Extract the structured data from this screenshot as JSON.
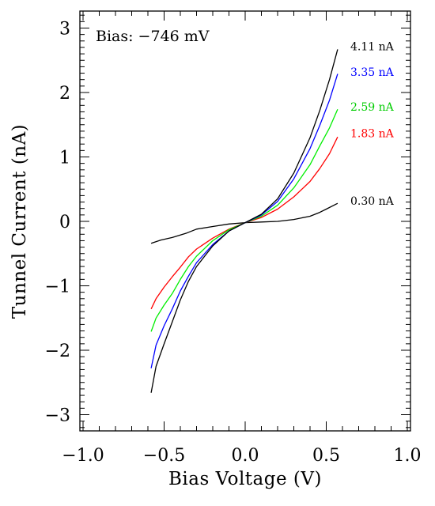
{
  "chart_data": {
    "type": "line",
    "title": "",
    "annotation": "Bias:  −746 mV",
    "xlabel": "Bias Voltage (V)",
    "ylabel": "Tunnel Current (nA)",
    "xlim": [
      -1.0,
      1.0
    ],
    "ylim": [
      -3.25,
      3.3
    ],
    "x_ticks": [
      -1.0,
      -0.5,
      0.0,
      0.5,
      1.0
    ],
    "x_tick_labels": [
      "−1.0",
      "−0.5",
      "0.0",
      "0.5",
      "1.0"
    ],
    "y_ticks": [
      -3,
      -2,
      -1,
      0,
      1,
      2,
      3
    ],
    "y_tick_labels": [
      "−3",
      "−2",
      "−1",
      "0",
      "1",
      "2",
      "3"
    ],
    "grid": false,
    "legend": "line-end labels",
    "series": [
      {
        "name": "0.30 nA",
        "color": "#000000",
        "points": [
          [
            -0.58,
            -0.34
          ],
          [
            -0.52,
            -0.29
          ],
          [
            -0.45,
            -0.25
          ],
          [
            -0.36,
            -0.18
          ],
          [
            -0.3,
            -0.12
          ],
          [
            -0.2,
            -0.08
          ],
          [
            -0.1,
            -0.04
          ],
          [
            0.0,
            -0.02
          ],
          [
            0.1,
            -0.01
          ],
          [
            0.2,
            0.0
          ],
          [
            0.3,
            0.03
          ],
          [
            0.4,
            0.08
          ],
          [
            0.46,
            0.14
          ],
          [
            0.5,
            0.19
          ],
          [
            0.57,
            0.28
          ]
        ]
      },
      {
        "name": "1.83 nA",
        "color": "#ff0000",
        "points": [
          [
            -0.58,
            -1.36
          ],
          [
            -0.55,
            -1.2
          ],
          [
            -0.5,
            -1.02
          ],
          [
            -0.45,
            -0.86
          ],
          [
            -0.4,
            -0.71
          ],
          [
            -0.35,
            -0.55
          ],
          [
            -0.3,
            -0.43
          ],
          [
            -0.2,
            -0.26
          ],
          [
            -0.1,
            -0.12
          ],
          [
            0.0,
            -0.02
          ],
          [
            0.1,
            0.06
          ],
          [
            0.2,
            0.19
          ],
          [
            0.3,
            0.38
          ],
          [
            0.4,
            0.62
          ],
          [
            0.46,
            0.82
          ],
          [
            0.52,
            1.05
          ],
          [
            0.57,
            1.31
          ]
        ]
      },
      {
        "name": "2.59 nA",
        "color": "#00ee00",
        "points": [
          [
            -0.58,
            -1.71
          ],
          [
            -0.55,
            -1.5
          ],
          [
            -0.5,
            -1.3
          ],
          [
            -0.45,
            -1.12
          ],
          [
            -0.4,
            -0.9
          ],
          [
            -0.35,
            -0.7
          ],
          [
            -0.3,
            -0.54
          ],
          [
            -0.2,
            -0.3
          ],
          [
            -0.1,
            -0.13
          ],
          [
            0.0,
            -0.02
          ],
          [
            0.1,
            0.08
          ],
          [
            0.2,
            0.25
          ],
          [
            0.3,
            0.52
          ],
          [
            0.4,
            0.88
          ],
          [
            0.46,
            1.17
          ],
          [
            0.52,
            1.45
          ],
          [
            0.57,
            1.74
          ]
        ]
      },
      {
        "name": "3.35 nA",
        "color": "#0000ff",
        "points": [
          [
            -0.58,
            -2.28
          ],
          [
            -0.55,
            -1.92
          ],
          [
            -0.5,
            -1.62
          ],
          [
            -0.45,
            -1.36
          ],
          [
            -0.4,
            -1.08
          ],
          [
            -0.35,
            -0.85
          ],
          [
            -0.3,
            -0.64
          ],
          [
            -0.2,
            -0.36
          ],
          [
            -0.1,
            -0.15
          ],
          [
            0.0,
            -0.02
          ],
          [
            0.1,
            0.1
          ],
          [
            0.2,
            0.31
          ],
          [
            0.3,
            0.66
          ],
          [
            0.4,
            1.13
          ],
          [
            0.46,
            1.49
          ],
          [
            0.52,
            1.88
          ],
          [
            0.57,
            2.29
          ]
        ]
      },
      {
        "name": "4.11 nA",
        "color": "#000000",
        "points": [
          [
            -0.58,
            -2.66
          ],
          [
            -0.55,
            -2.25
          ],
          [
            -0.5,
            -1.9
          ],
          [
            -0.45,
            -1.56
          ],
          [
            -0.4,
            -1.22
          ],
          [
            -0.35,
            -0.93
          ],
          [
            -0.3,
            -0.7
          ],
          [
            -0.2,
            -0.38
          ],
          [
            -0.1,
            -0.15
          ],
          [
            0.0,
            -0.02
          ],
          [
            0.1,
            0.11
          ],
          [
            0.2,
            0.35
          ],
          [
            0.3,
            0.75
          ],
          [
            0.4,
            1.3
          ],
          [
            0.46,
            1.72
          ],
          [
            0.52,
            2.2
          ],
          [
            0.57,
            2.67
          ]
        ]
      }
    ],
    "series_labels": [
      {
        "text": "4.11 nA",
        "color": "#000000",
        "x": 0.6,
        "y": 2.72
      },
      {
        "text": "3.35 nA",
        "color": "#0000ff",
        "x": 0.6,
        "y": 2.32
      },
      {
        "text": "2.59 nA",
        "color": "#00cc00",
        "x": 0.6,
        "y": 1.78
      },
      {
        "text": "1.83 nA",
        "color": "#ff0000",
        "x": 0.6,
        "y": 1.37
      },
      {
        "text": "0.30 nA",
        "color": "#000000",
        "x": 0.6,
        "y": 0.32
      }
    ]
  }
}
